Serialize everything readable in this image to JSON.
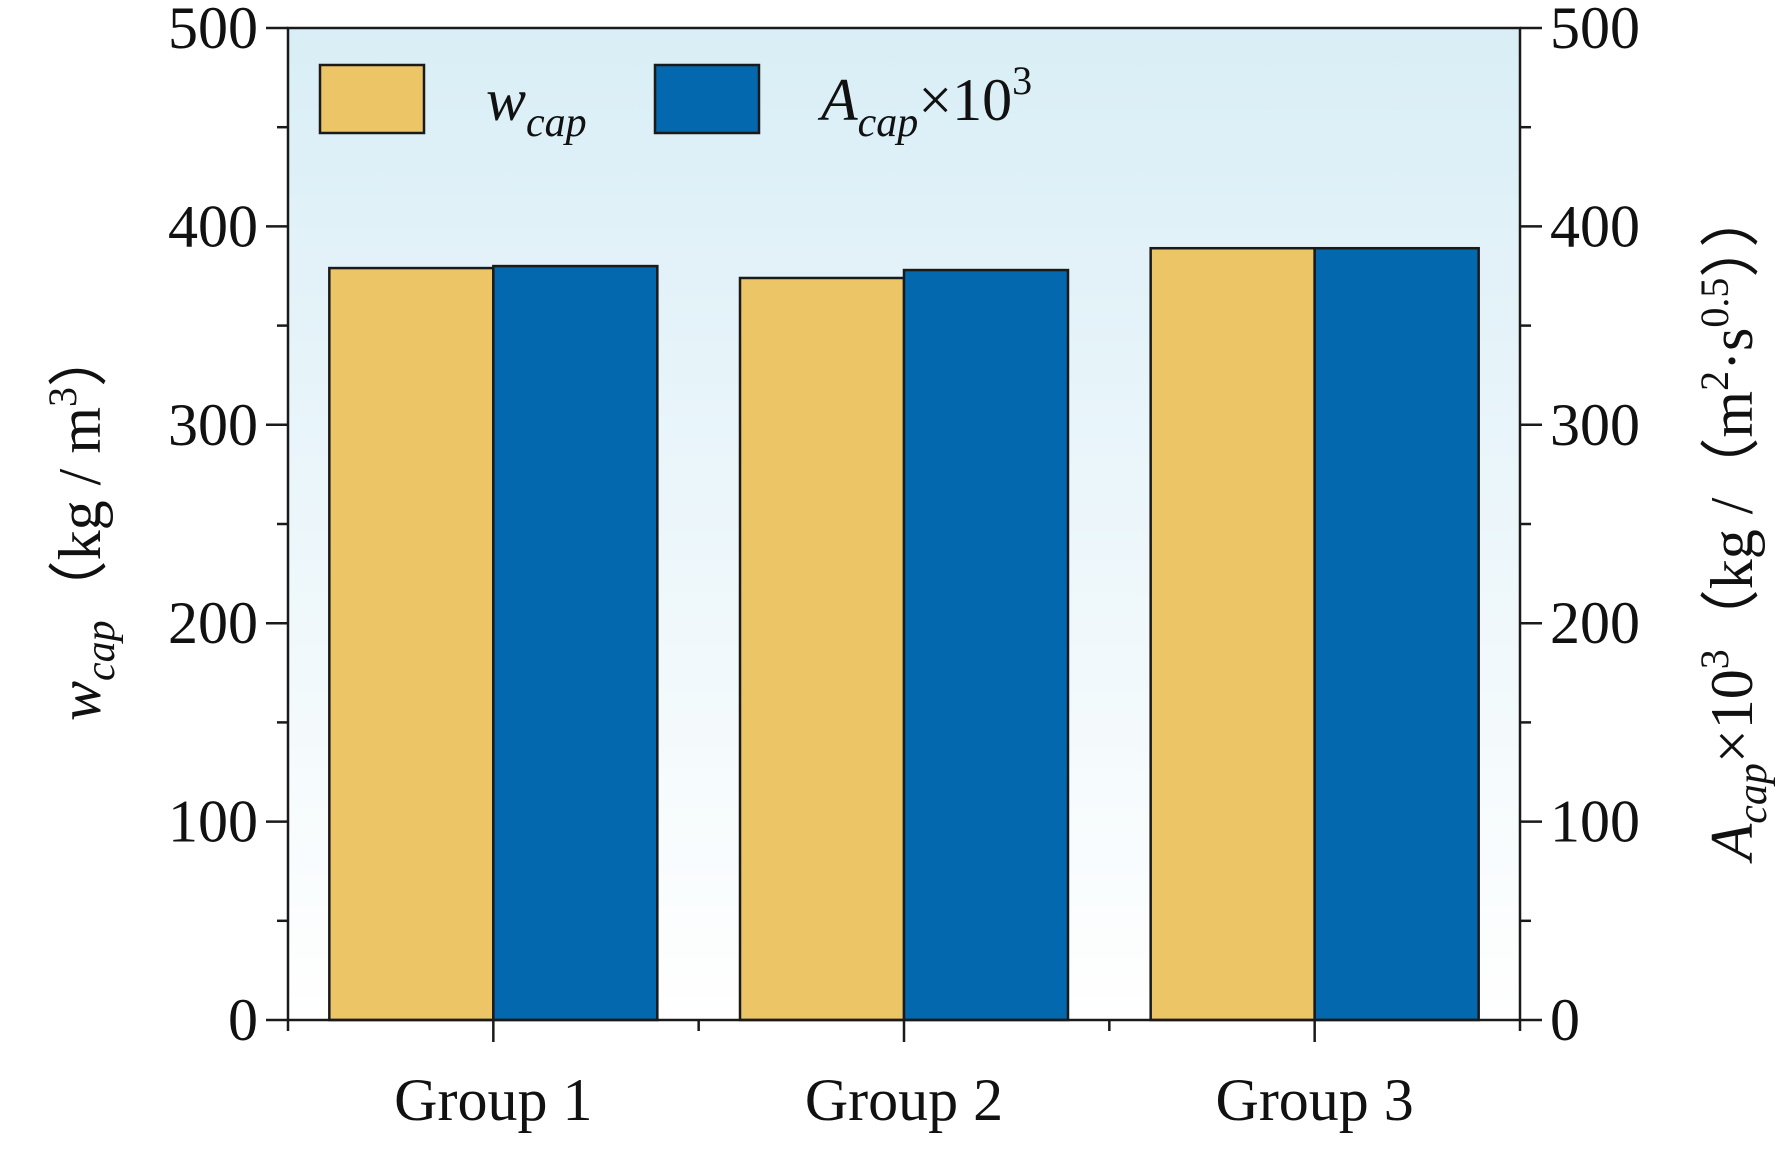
{
  "chart_data": {
    "type": "bar",
    "title": "",
    "categories": [
      "Group 1",
      "Group 2",
      "Group 3"
    ],
    "series": [
      {
        "name": "w_cap",
        "axis": "left",
        "color": "#ECC567",
        "values": [
          379,
          374,
          389
        ]
      },
      {
        "name": "A_cap×10^3",
        "axis": "right",
        "color": "#0368AE",
        "values": [
          380,
          378,
          389
        ]
      }
    ],
    "ylim": [
      0,
      500
    ],
    "y2lim": [
      0,
      500
    ],
    "yticks": [
      "0",
      "100",
      "200",
      "300",
      "400",
      "500"
    ],
    "y2ticks": [
      "0",
      "100",
      "200",
      "300",
      "400",
      "500"
    ],
    "ylabel": {
      "var": "w",
      "sub": "cap",
      "unit": "（kg / m",
      "sup": "3",
      "close": "）"
    },
    "y2label": {
      "var": "A",
      "sub": "cap",
      "mult": "×10",
      "multsup": "3",
      "unit": "（kg /（m",
      "sup1": "2",
      "mid": "·s",
      "sup2": "0.5",
      "close": "））"
    },
    "legend": {
      "position": "top-left",
      "entries": [
        {
          "var": "w",
          "sub": "cap"
        },
        {
          "var": "A",
          "sub": "cap",
          "suffix": "×10",
          "sup": "3"
        }
      ]
    },
    "background_gradient": {
      "top": "#D9EEF6",
      "bottom": "#FFFFFF"
    },
    "grid": false
  }
}
